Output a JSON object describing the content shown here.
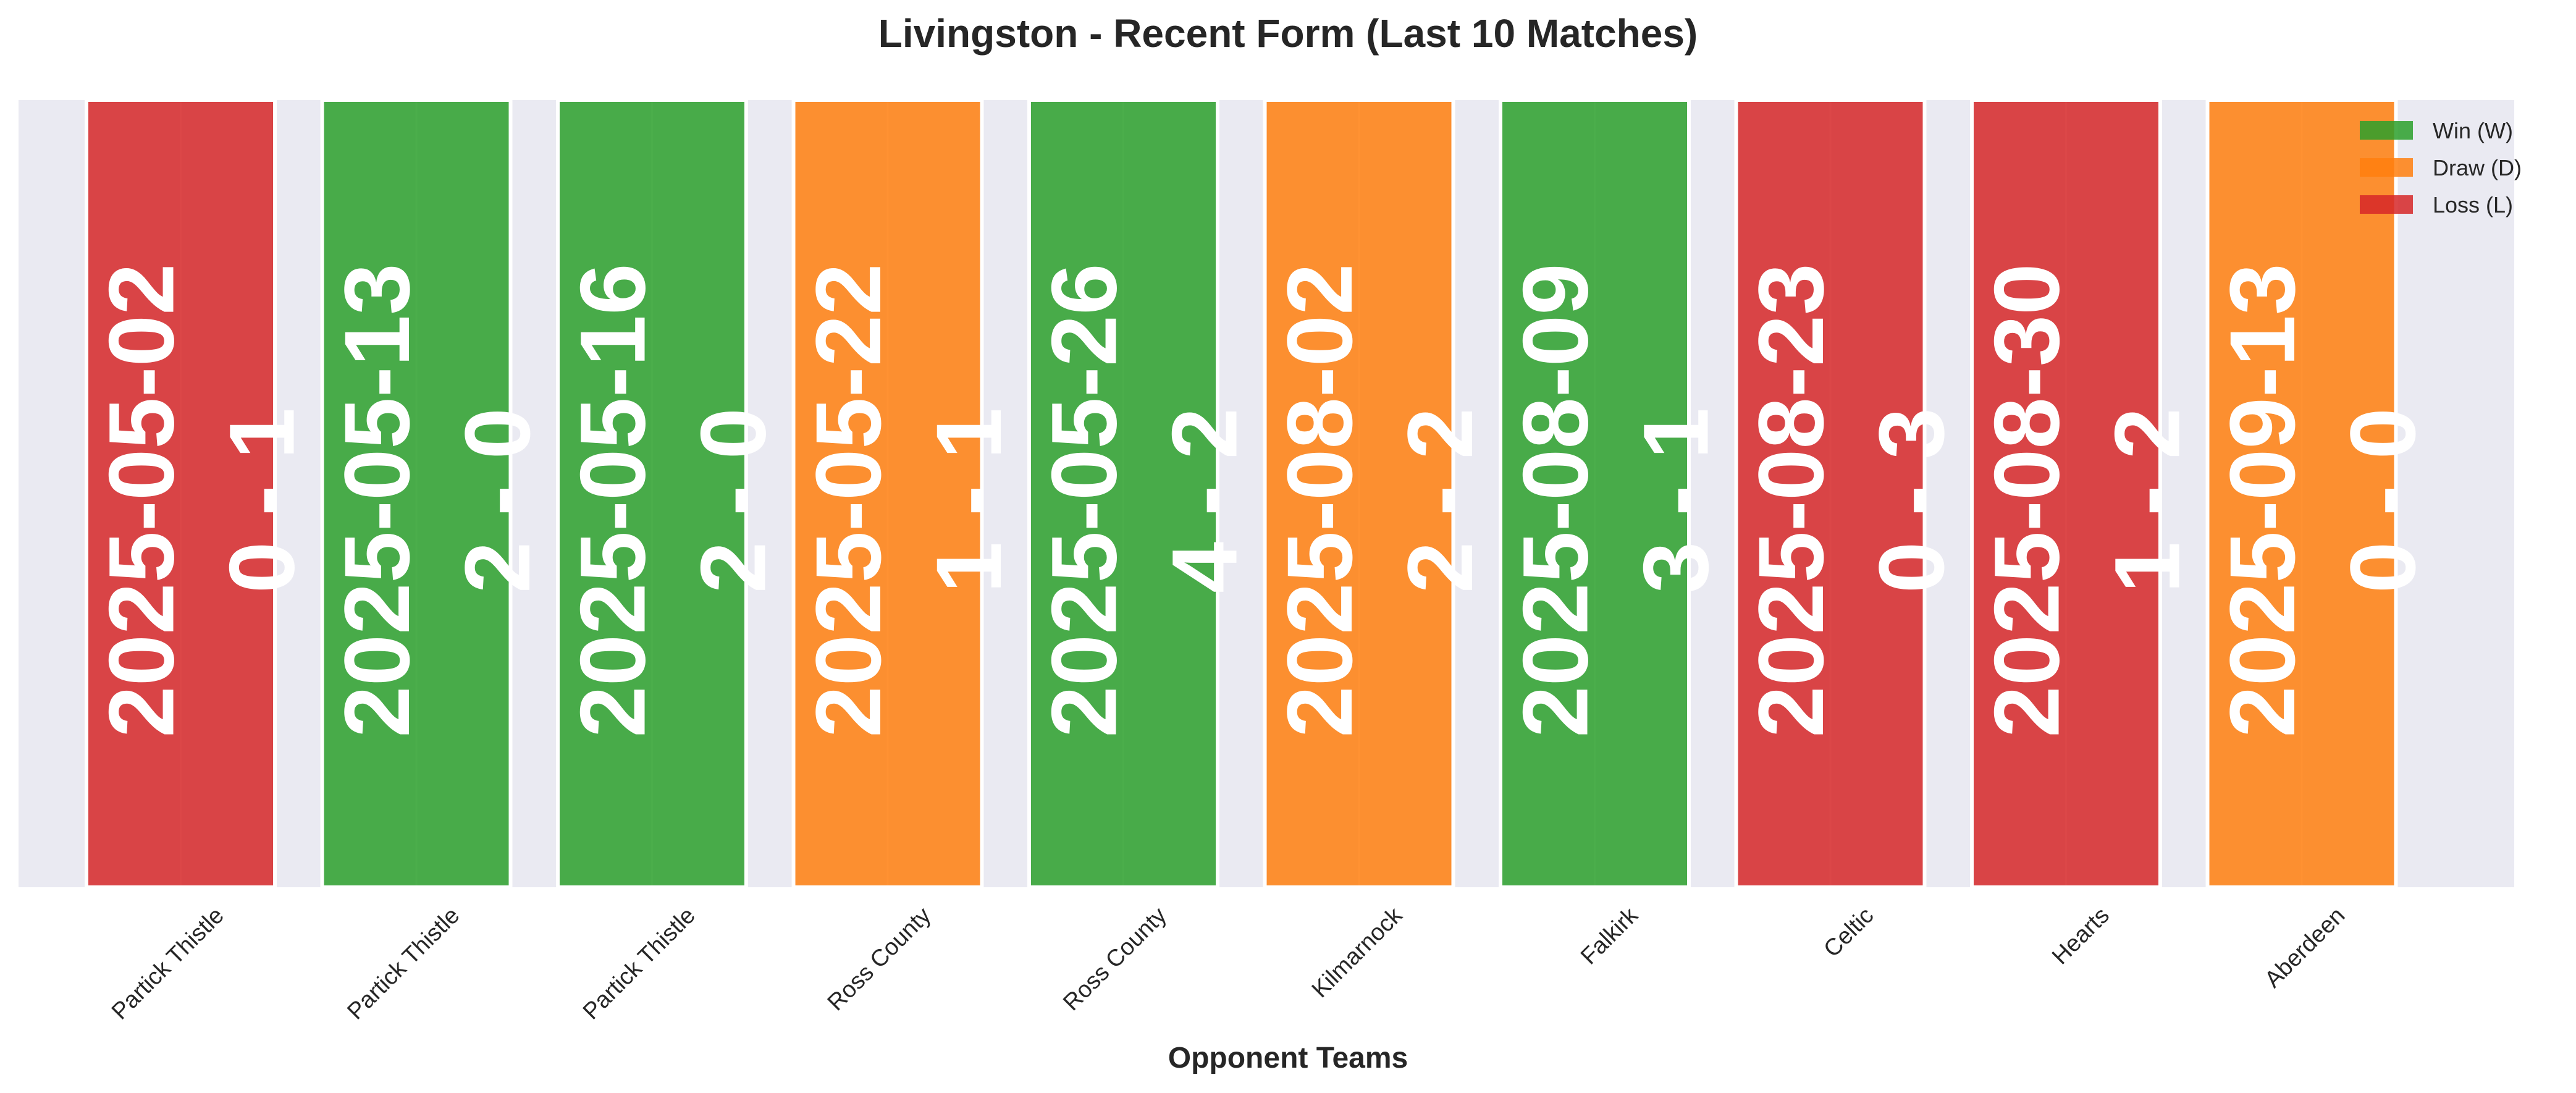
{
  "chart_data": {
    "type": "bar",
    "title": "Livingston - Recent Form (Last 10 Matches)",
    "xlabel": "Opponent Teams",
    "ylabel": "",
    "grid": true,
    "legend_placement": "top-right",
    "categories": [
      "Partick Thistle",
      "Partick Thistle",
      "Partick Thistle",
      "Ross County",
      "Ross County",
      "Kilmarnock",
      "Falkirk",
      "Celtic",
      "Hearts",
      "Aberdeen"
    ],
    "values": [
      1,
      1,
      1,
      1,
      1,
      1,
      1,
      1,
      1,
      1
    ],
    "dates": [
      "2025-05-02",
      "2025-05-13",
      "2025-05-16",
      "2025-05-22",
      "2025-05-26",
      "2025-08-02",
      "2025-08-09",
      "2025-08-23",
      "2025-08-30",
      "2025-09-13"
    ],
    "scores": [
      "0 - 1",
      "2 - 0",
      "2 - 0",
      "1 - 1",
      "4 - 2",
      "2 - 2",
      "3 - 1",
      "0 - 3",
      "1 - 2",
      "0 - 0"
    ],
    "results": [
      "L",
      "W",
      "W",
      "D",
      "W",
      "D",
      "W",
      "L",
      "L",
      "D"
    ],
    "legend": [
      {
        "key": "W",
        "label": "Win (W)",
        "color": "#2ca02c"
      },
      {
        "key": "D",
        "label": "Draw (D)",
        "color": "#ff7f0e"
      },
      {
        "key": "L",
        "label": "Loss (L)",
        "color": "#d62728"
      }
    ],
    "colors": {
      "W": "#2ca02c",
      "D": "#ff7f0e",
      "L": "#d62728"
    },
    "background": "#eaeaf2"
  }
}
